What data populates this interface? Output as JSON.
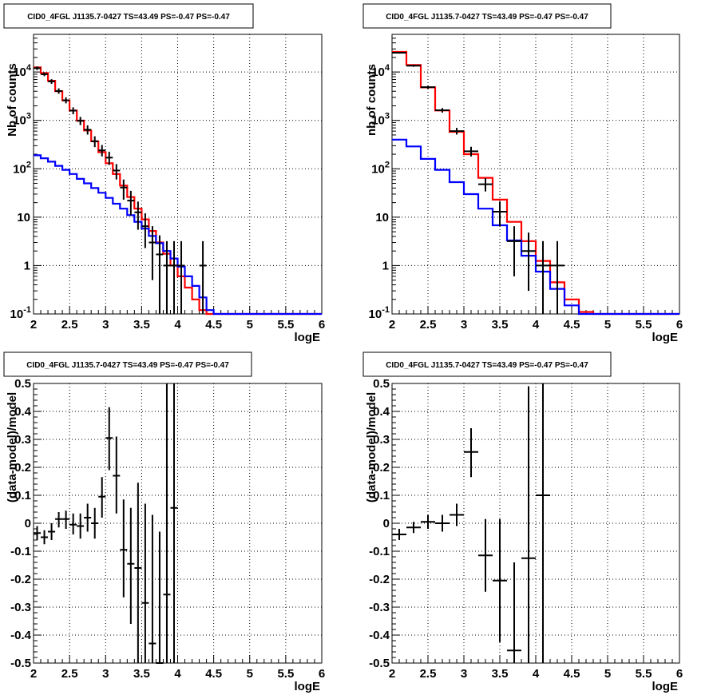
{
  "chart_data": [
    {
      "type": "line",
      "title": "CID0_4FGL J1135.7-0427 TS=43.49 PS=-0.47 PS=-0.47",
      "xlabel": "logE",
      "ylabel": "Nb of counts",
      "xlim": [
        2,
        6
      ],
      "ylim": [
        0.1,
        60000
      ],
      "log_y": true,
      "grid": true,
      "x_ticks": [
        "2",
        "2.5",
        "3",
        "3.5",
        "4",
        "4.5",
        "5",
        "5.5",
        "6"
      ],
      "y_ticks": [
        "10^-1",
        "1",
        "10",
        "10^2",
        "10^3",
        "10^4"
      ],
      "bin_edges": [
        2.0,
        2.1,
        2.2,
        2.3,
        2.4,
        2.5,
        2.6,
        2.7,
        2.8,
        2.9,
        3.0,
        3.1,
        3.2,
        3.3,
        3.4,
        3.5,
        3.6,
        3.7,
        3.8,
        3.9,
        4.0,
        4.1,
        4.2,
        4.3,
        4.4,
        4.5,
        4.6,
        4.7,
        4.8,
        4.9,
        5.0,
        5.1,
        5.2,
        5.3,
        5.4,
        5.5,
        5.6,
        5.7,
        5.8,
        5.9,
        6.0
      ],
      "series": [
        {
          "color": "#ff0000",
          "values": [
            12500,
            9500,
            6600,
            4000,
            2600,
            1600,
            990,
            620,
            370,
            220,
            130,
            78,
            45,
            26,
            15,
            9,
            5.2,
            3.0,
            1.75,
            1.0,
            0.6,
            0.35,
            0.2,
            0.12,
            0.1,
            0.1,
            0.1,
            0.1,
            0.1,
            0.1,
            0.1,
            0.1,
            0.1,
            0.1,
            0.1,
            0.1,
            0.1,
            0.1,
            0.1,
            0.1
          ]
        },
        {
          "color": "#0000ff",
          "values": [
            190,
            165,
            140,
            115,
            95,
            78,
            62,
            50,
            40,
            32,
            25,
            19,
            15,
            11,
            8,
            5.8,
            4.1,
            2.9,
            2.0,
            1.4,
            0.95,
            0.6,
            0.38,
            0.22,
            0.12,
            0.1,
            0.1,
            0.1,
            0.1,
            0.1,
            0.1,
            0.1,
            0.1,
            0.1,
            0.1,
            0.1,
            0.1,
            0.1,
            0.1,
            0.1
          ]
        }
      ],
      "data_points": [
        {
          "x": 2.05,
          "y": 12000,
          "lo": 11000,
          "hi": 13000
        },
        {
          "x": 2.15,
          "y": 9000,
          "lo": 8200,
          "hi": 9800
        },
        {
          "x": 2.25,
          "y": 6400,
          "lo": 5700,
          "hi": 7100
        },
        {
          "x": 2.35,
          "y": 4050,
          "lo": 3550,
          "hi": 4600
        },
        {
          "x": 2.45,
          "y": 2600,
          "lo": 2250,
          "hi": 3000
        },
        {
          "x": 2.55,
          "y": 1590,
          "lo": 1340,
          "hi": 1860
        },
        {
          "x": 2.65,
          "y": 980,
          "lo": 800,
          "hi": 1180
        },
        {
          "x": 2.75,
          "y": 640,
          "lo": 510,
          "hi": 790
        },
        {
          "x": 2.85,
          "y": 370,
          "lo": 280,
          "hi": 470
        },
        {
          "x": 2.95,
          "y": 240,
          "lo": 180,
          "hi": 310
        },
        {
          "x": 3.05,
          "y": 170,
          "lo": 120,
          "hi": 225
        },
        {
          "x": 3.15,
          "y": 92,
          "lo": 60,
          "hi": 125
        },
        {
          "x": 3.25,
          "y": 41,
          "lo": 23,
          "hi": 60
        },
        {
          "x": 3.35,
          "y": 22,
          "lo": 11,
          "hi": 35
        },
        {
          "x": 3.45,
          "y": 12.6,
          "lo": 5.5,
          "hi": 21
        },
        {
          "x": 3.55,
          "y": 6.5,
          "lo": 2.3,
          "hi": 12
        },
        {
          "x": 3.65,
          "y": 3.0,
          "lo": 0.5,
          "hi": 6.5
        },
        {
          "x": 3.75,
          "y": 1.7,
          "lo": 0.1,
          "hi": 4.2
        },
        {
          "x": 3.85,
          "y": 1.0,
          "lo": 0.1,
          "hi": 3.2
        },
        {
          "x": 3.95,
          "y": 1.0,
          "lo": 0.1,
          "hi": 3.2
        },
        {
          "x": 4.05,
          "y": 1.0,
          "lo": 0.1,
          "hi": 3.2
        },
        {
          "x": 4.35,
          "y": 1.0,
          "lo": 0.1,
          "hi": 3.2
        }
      ]
    },
    {
      "type": "line",
      "title": "CID0_4FGL J1135.7-0427 TS=43.49 PS=-0.47 PS=-0.47",
      "xlabel": "logE",
      "ylabel": "nb of counts",
      "xlim": [
        2,
        6
      ],
      "ylim": [
        0.1,
        60000
      ],
      "log_y": true,
      "grid": true,
      "x_ticks": [
        "2",
        "2.5",
        "3",
        "3.5",
        "4",
        "4.5",
        "5",
        "5.5",
        "6"
      ],
      "y_ticks": [
        "10^-1",
        "1",
        "10",
        "10^2",
        "10^3",
        "10^4"
      ],
      "bin_edges": [
        2.0,
        2.2,
        2.4,
        2.6,
        2.8,
        3.0,
        3.2,
        3.4,
        3.6,
        3.8,
        4.0,
        4.2,
        4.4,
        4.6,
        4.8,
        5.0,
        5.2,
        5.4,
        5.6,
        5.8,
        6.0
      ],
      "series": [
        {
          "color": "#ff0000",
          "values": [
            26000,
            14000,
            4800,
            1600,
            580,
            200,
            65,
            23,
            8,
            3.2,
            1.25,
            0.45,
            0.2,
            0.11,
            0.1,
            0.1,
            0.1,
            0.1,
            0.1,
            0.1
          ]
        },
        {
          "color": "#0000ff",
          "values": [
            400,
            290,
            160,
            95,
            53,
            30,
            15,
            6.8,
            3.3,
            1.6,
            0.75,
            0.33,
            0.15,
            0.1,
            0.1,
            0.1,
            0.1,
            0.1,
            0.1,
            0.1
          ]
        }
      ],
      "data_points": [
        {
          "x": 2.1,
          "y": 25000,
          "lo": 24000,
          "hi": 26000
        },
        {
          "x": 2.3,
          "y": 13500,
          "lo": 12800,
          "hi": 14200
        },
        {
          "x": 2.5,
          "y": 4850,
          "lo": 4500,
          "hi": 5200
        },
        {
          "x": 2.7,
          "y": 1620,
          "lo": 1450,
          "hi": 1800
        },
        {
          "x": 2.9,
          "y": 600,
          "lo": 510,
          "hi": 700
        },
        {
          "x": 3.1,
          "y": 230,
          "lo": 180,
          "hi": 285
        },
        {
          "x": 3.3,
          "y": 48,
          "lo": 34,
          "hi": 64
        },
        {
          "x": 3.5,
          "y": 13,
          "lo": 6.5,
          "hi": 21
        },
        {
          "x": 3.7,
          "y": 3.2,
          "lo": 0.6,
          "hi": 6.5
        },
        {
          "x": 3.9,
          "y": 2.0,
          "lo": 0.3,
          "hi": 4.8
        },
        {
          "x": 4.1,
          "y": 1.0,
          "lo": 0.1,
          "hi": 3.2
        },
        {
          "x": 4.3,
          "y": 1.0,
          "lo": 0.1,
          "hi": 3.2
        }
      ]
    },
    {
      "type": "scatter",
      "title": "CID0_4FGL J1135.7-0427 TS=43.49 PS=-0.47 PS=-0.47",
      "xlabel": "logE",
      "ylabel": "(data-model)/model",
      "xlim": [
        2,
        6
      ],
      "ylim": [
        -0.5,
        0.5
      ],
      "grid": true,
      "x_ticks": [
        "2",
        "2.5",
        "3",
        "3.5",
        "4",
        "4.5",
        "5",
        "5.5",
        "6"
      ],
      "y_ticks": [
        "-0.5",
        "-0.4",
        "-0.3",
        "-0.2",
        "-0.1",
        "0",
        "0.1",
        "0.2",
        "0.3",
        "0.4",
        "0.5"
      ],
      "half_width": 0.05,
      "data_points": [
        {
          "x": 2.05,
          "y": -0.035,
          "lo": -0.06,
          "hi": -0.01
        },
        {
          "x": 2.15,
          "y": -0.05,
          "lo": -0.075,
          "hi": -0.025
        },
        {
          "x": 2.25,
          "y": -0.03,
          "lo": -0.06,
          "hi": 0.0
        },
        {
          "x": 2.35,
          "y": 0.015,
          "lo": -0.015,
          "hi": 0.04
        },
        {
          "x": 2.45,
          "y": 0.015,
          "lo": -0.02,
          "hi": 0.045
        },
        {
          "x": 2.55,
          "y": -0.005,
          "lo": -0.04,
          "hi": 0.035
        },
        {
          "x": 2.65,
          "y": -0.01,
          "lo": -0.055,
          "hi": 0.035
        },
        {
          "x": 2.75,
          "y": 0.02,
          "lo": -0.03,
          "hi": 0.07
        },
        {
          "x": 2.85,
          "y": 0.0,
          "lo": -0.055,
          "hi": 0.055
        },
        {
          "x": 2.95,
          "y": 0.095,
          "lo": 0.02,
          "hi": 0.165
        },
        {
          "x": 3.05,
          "y": 0.305,
          "lo": 0.19,
          "hi": 0.415
        },
        {
          "x": 3.15,
          "y": 0.17,
          "lo": 0.035,
          "hi": 0.31
        },
        {
          "x": 3.25,
          "y": -0.095,
          "lo": -0.265,
          "hi": 0.085
        },
        {
          "x": 3.35,
          "y": -0.145,
          "lo": -0.36,
          "hi": 0.055
        },
        {
          "x": 3.45,
          "y": -0.16,
          "lo": -0.5,
          "hi": 0.145
        },
        {
          "x": 3.55,
          "y": -0.285,
          "lo": -0.5,
          "hi": 0.07
        },
        {
          "x": 3.65,
          "y": -0.43,
          "lo": -0.5,
          "hi": 0.03
        },
        {
          "x": 3.75,
          "y": -0.5,
          "lo": -0.5,
          "hi": -0.03
        },
        {
          "x": 3.85,
          "y": -0.255,
          "lo": -0.5,
          "hi": 0.5
        },
        {
          "x": 3.95,
          "y": 0.055,
          "lo": -0.5,
          "hi": 0.5
        }
      ]
    },
    {
      "type": "scatter",
      "title": "CID0_4FGL J1135.7-0427 TS=43.49 PS=-0.47 PS=-0.47",
      "xlabel": "logE",
      "ylabel": "(data-model)/model",
      "xlim": [
        2,
        6
      ],
      "ylim": [
        -0.5,
        0.5
      ],
      "grid": true,
      "x_ticks": [
        "2",
        "2.5",
        "3",
        "3.5",
        "4",
        "4.5",
        "5",
        "5.5",
        "6"
      ],
      "y_ticks": [
        "-0.5",
        "-0.4",
        "-0.3",
        "-0.2",
        "-0.1",
        "0",
        "0.1",
        "0.2",
        "0.3",
        "0.4",
        "0.5"
      ],
      "half_width": 0.1,
      "data_points": [
        {
          "x": 2.1,
          "y": -0.04,
          "lo": -0.06,
          "hi": -0.02
        },
        {
          "x": 2.3,
          "y": -0.015,
          "lo": -0.035,
          "hi": 0.005
        },
        {
          "x": 2.5,
          "y": 0.005,
          "lo": -0.02,
          "hi": 0.03
        },
        {
          "x": 2.7,
          "y": 0.0,
          "lo": -0.03,
          "hi": 0.03
        },
        {
          "x": 2.9,
          "y": 0.03,
          "lo": -0.01,
          "hi": 0.07
        },
        {
          "x": 3.1,
          "y": 0.255,
          "lo": 0.165,
          "hi": 0.34
        },
        {
          "x": 3.3,
          "y": -0.115,
          "lo": -0.245,
          "hi": 0.015
        },
        {
          "x": 3.5,
          "y": -0.205,
          "lo": -0.425,
          "hi": 0.015
        },
        {
          "x": 3.7,
          "y": -0.455,
          "lo": -0.5,
          "hi": -0.14
        },
        {
          "x": 3.9,
          "y": -0.125,
          "lo": -0.5,
          "hi": 0.49
        },
        {
          "x": 4.1,
          "y": 0.1,
          "lo": -0.5,
          "hi": 0.5
        }
      ]
    }
  ]
}
